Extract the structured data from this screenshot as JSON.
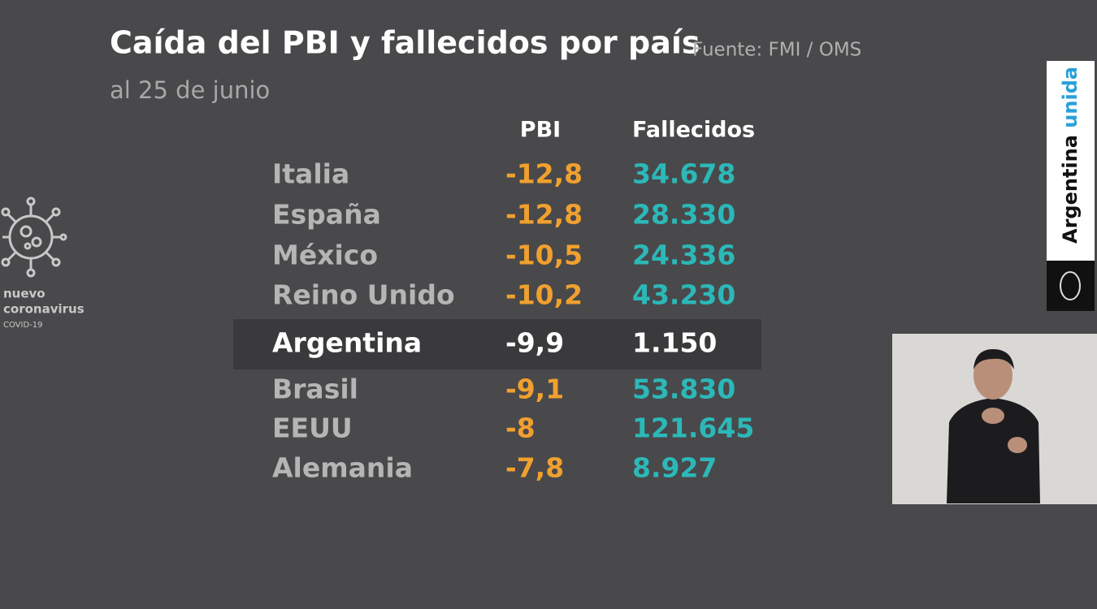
{
  "header": {
    "title": "Caída del PBI y fallecidos por país",
    "source": "Fuente: FMI / OMS",
    "subtitle": "al 25 de junio"
  },
  "logo": {
    "line1": "nuevo",
    "line2": "coronavirus",
    "line3": "COVID-19"
  },
  "banner": {
    "word1": "Argentina",
    "word2": "unida"
  },
  "table": {
    "columns": [
      "PBI",
      "Fallecidos"
    ],
    "highlight": 4,
    "rows": [
      [
        "Italia",
        "-12,8",
        "34.678"
      ],
      [
        "España",
        "-12,8",
        "28.330"
      ],
      [
        "México",
        "-10,5",
        "24.336"
      ],
      [
        "Reino Unido",
        "-10,2",
        "43.230"
      ],
      [
        "Argentina",
        "-9,9",
        "1.150"
      ],
      [
        "Brasil",
        "-9,1",
        "53.830"
      ],
      [
        "EEUU",
        "-8",
        "121.645"
      ],
      [
        "Alemania",
        "-7,8",
        "8.927"
      ]
    ]
  }
}
